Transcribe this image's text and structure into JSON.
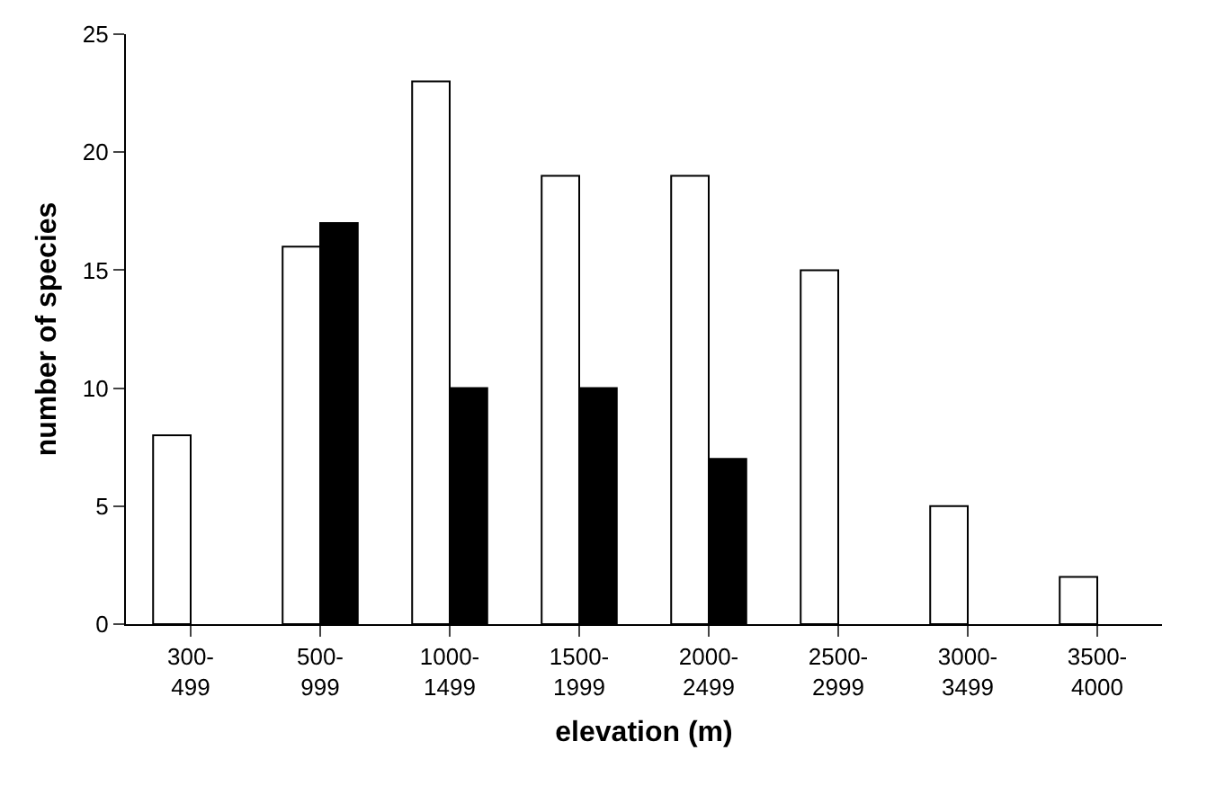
{
  "chart_data": {
    "type": "bar",
    "xlabel": "elevation (m)",
    "ylabel": "number of species",
    "categories": [
      "300-\n499",
      "500-\n999",
      "1000-\n1499",
      "1500-\n1999",
      "2000-\n2499",
      "2500-\n2999",
      "3000-\n3499",
      "3500-\n4000"
    ],
    "series": [
      {
        "color": "#ffffff",
        "values": [
          8,
          16,
          23,
          19,
          19,
          15,
          5,
          2
        ]
      },
      {
        "color": "#000000",
        "values": [
          null,
          17,
          10,
          10,
          7,
          null,
          null,
          null
        ]
      }
    ],
    "ylim": [
      0,
      25
    ],
    "yticks": [
      0,
      5,
      10,
      15,
      20,
      25
    ],
    "grid": false,
    "legend": false,
    "data_labels": false
  }
}
